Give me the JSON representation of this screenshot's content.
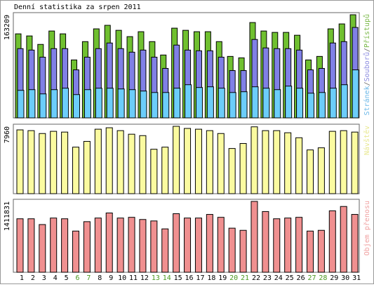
{
  "chart_data": [
    {
      "type": "bar",
      "title": "Denní statistika za srpen 2011",
      "separator": "/",
      "ylim": [
        0,
        163209
      ],
      "yticks": [
        163209
      ],
      "series": [
        {
          "name": "Přístupů",
          "color": "#70c030",
          "label_color": "#7ab848",
          "values": [
            133000,
            129700,
            116300,
            137500,
            133000,
            91700,
            120700,
            140900,
            146500,
            138600,
            128600,
            136400,
            120700,
            99500,
            142000,
            138600,
            136400,
            136400,
            120700,
            97300,
            95000,
            150900,
            137500,
            135300,
            135300,
            130800,
            91700,
            97300,
            140900,
            148700,
            163209
          ]
        },
        {
          "name": "Souborů",
          "color": "#8080e6",
          "label_color": "#8c8ce0",
          "values": [
            109600,
            107300,
            96100,
            109600,
            109600,
            76000,
            96100,
            109600,
            118500,
            109600,
            104000,
            107300,
            96100,
            78300,
            115200,
            107300,
            106200,
            106200,
            96100,
            74900,
            74900,
            124100,
            110700,
            109600,
            109600,
            107300,
            76000,
            78300,
            118500,
            120700,
            143100
          ]
        },
        {
          "name": "Stránek",
          "color": "#6ccdfa",
          "label_color": "#6cb8e8",
          "values": [
            43600,
            44700,
            38000,
            44700,
            47000,
            36900,
            44700,
            47000,
            47000,
            45800,
            44700,
            42500,
            40200,
            40200,
            47000,
            52500,
            48100,
            49200,
            47000,
            40200,
            41400,
            49200,
            47000,
            44700,
            50300,
            47000,
            39100,
            40200,
            47000,
            52500,
            76000
          ]
        }
      ]
    },
    {
      "type": "bar",
      "ylim": [
        0,
        7960
      ],
      "yticks": [
        7960
      ],
      "series": [
        {
          "name": "Návštěv",
          "color": "#fbfba0",
          "label_color": "#e8e890",
          "values": [
            7540,
            7450,
            7110,
            7370,
            7280,
            5500,
            6180,
            7620,
            7790,
            7450,
            7030,
            6860,
            5250,
            5500,
            7960,
            7710,
            7620,
            7450,
            7110,
            5340,
            5930,
            7900,
            7450,
            7450,
            7200,
            6610,
            5170,
            5420,
            7370,
            7450,
            7280
          ]
        }
      ]
    },
    {
      "type": "bar",
      "ylim": [
        0,
        1411831
      ],
      "yticks": [
        1411831
      ],
      "categories": [
        "1",
        "2",
        "3",
        "4",
        "5",
        "6",
        "7",
        "8",
        "9",
        "10",
        "11",
        "12",
        "13",
        "14",
        "15",
        "16",
        "17",
        "18",
        "19",
        "20",
        "21",
        "22",
        "23",
        "24",
        "25",
        "26",
        "27",
        "28",
        "29",
        "30",
        "31"
      ],
      "category_colors": [
        "#000000",
        "#000000",
        "#000000",
        "#000000",
        "#000000",
        "#4a9a20",
        "#4a9a20",
        "#000000",
        "#000000",
        "#000000",
        "#000000",
        "#000000",
        "#4a9a20",
        "#4a9a20",
        "#000000",
        "#000000",
        "#000000",
        "#000000",
        "#000000",
        "#4a9a20",
        "#4a9a20",
        "#000000",
        "#000000",
        "#000000",
        "#000000",
        "#000000",
        "#4a9a20",
        "#4a9a20",
        "#000000",
        "#000000",
        "#000000"
      ],
      "series": [
        {
          "name": "Objem přenosu",
          "color": "#f09090",
          "label_color": "#f0a0a0",
          "values": [
            1066000,
            1066000,
            950800,
            1080500,
            1066000,
            821100,
            1008400,
            1080500,
            1181300,
            1080500,
            1094900,
            1051600,
            1022800,
            864400,
            1166900,
            1080500,
            1080500,
            1152500,
            1094900,
            878800,
            835500,
            1411831,
            1210100,
            1066000,
            1080500,
            1094900,
            821100,
            835500,
            1224500,
            1310900,
            1152500
          ]
        }
      ]
    }
  ]
}
